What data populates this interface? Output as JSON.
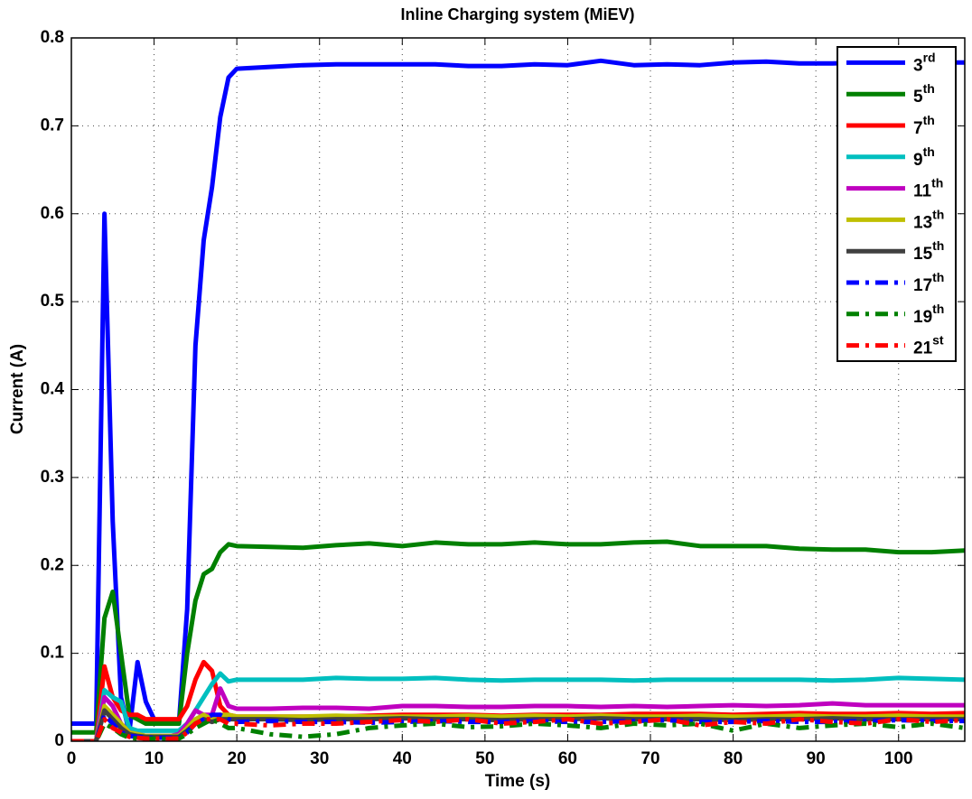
{
  "chart_data": {
    "type": "line",
    "title": "Inline Charging system (MiEV)",
    "x_label": "Time (s)",
    "y_label": "Current (A)",
    "x": [
      0,
      3,
      4,
      5,
      6,
      7,
      8,
      9,
      10,
      11,
      12,
      13,
      14,
      15,
      16,
      17,
      18,
      19,
      20,
      24,
      28,
      32,
      36,
      40,
      44,
      48,
      52,
      56,
      60,
      64,
      68,
      72,
      76,
      80,
      84,
      88,
      92,
      96,
      100,
      104,
      108
    ],
    "xlim": [
      0,
      108
    ],
    "xticks": [
      0,
      10,
      20,
      30,
      40,
      50,
      60,
      70,
      80,
      90,
      100
    ],
    "ylim": [
      0,
      0.8
    ],
    "yticks": [
      0,
      0.1,
      0.2,
      0.3,
      0.4,
      0.5,
      0.6,
      0.7,
      0.8
    ],
    "grid": true,
    "legend": "top-right",
    "series": [
      {
        "name": "3rd",
        "color": "#0000ff",
        "style": "solid",
        "values": [
          0.02,
          0.02,
          0.6,
          0.25,
          0.05,
          0.01,
          0.09,
          0.045,
          0.025,
          0.02,
          0.02,
          0.02,
          0.15,
          0.45,
          0.57,
          0.63,
          0.71,
          0.755,
          0.765,
          0.767,
          0.769,
          0.77,
          0.77,
          0.77,
          0.77,
          0.768,
          0.768,
          0.77,
          0.769,
          0.774,
          0.769,
          0.77,
          0.769,
          0.772,
          0.773,
          0.771,
          0.771,
          0.772,
          0.772,
          0.772,
          0.772
        ]
      },
      {
        "name": "5th",
        "color": "#008000",
        "style": "solid",
        "values": [
          0.01,
          0.01,
          0.14,
          0.17,
          0.1,
          0.03,
          0.025,
          0.02,
          0.02,
          0.02,
          0.02,
          0.02,
          0.1,
          0.16,
          0.19,
          0.196,
          0.215,
          0.224,
          0.222,
          0.221,
          0.22,
          0.223,
          0.225,
          0.222,
          0.226,
          0.224,
          0.224,
          0.226,
          0.224,
          0.224,
          0.226,
          0.227,
          0.222,
          0.222,
          0.222,
          0.219,
          0.218,
          0.218,
          0.215,
          0.215,
          0.217
        ]
      },
      {
        "name": "7th",
        "color": "#ff0000",
        "style": "solid",
        "values": [
          0,
          0,
          0.085,
          0.05,
          0.035,
          0.03,
          0.03,
          0.025,
          0.025,
          0.025,
          0.025,
          0.025,
          0.04,
          0.07,
          0.09,
          0.08,
          0.04,
          0.03,
          0.028,
          0.028,
          0.028,
          0.028,
          0.029,
          0.03,
          0.03,
          0.03,
          0.029,
          0.03,
          0.03,
          0.03,
          0.031,
          0.031,
          0.031,
          0.03,
          0.031,
          0.032,
          0.031,
          0.031,
          0.032,
          0.031,
          0.032
        ]
      },
      {
        "name": "9th",
        "color": "#00bfbf",
        "style": "solid",
        "values": [
          0,
          0,
          0.058,
          0.05,
          0.045,
          0.015,
          0.012,
          0.012,
          0.012,
          0.012,
          0.012,
          0.012,
          0.02,
          0.035,
          0.05,
          0.065,
          0.077,
          0.068,
          0.07,
          0.07,
          0.07,
          0.072,
          0.071,
          0.071,
          0.072,
          0.07,
          0.069,
          0.07,
          0.07,
          0.07,
          0.069,
          0.07,
          0.07,
          0.07,
          0.07,
          0.07,
          0.069,
          0.07,
          0.072,
          0.071,
          0.07
        ]
      },
      {
        "name": "11th",
        "color": "#bf00bf",
        "style": "solid",
        "values": [
          0,
          0,
          0.05,
          0.04,
          0.02,
          0.01,
          0.008,
          0.006,
          0.006,
          0.006,
          0.006,
          0.008,
          0.02,
          0.035,
          0.03,
          0.03,
          0.06,
          0.04,
          0.037,
          0.037,
          0.038,
          0.038,
          0.037,
          0.04,
          0.04,
          0.039,
          0.039,
          0.04,
          0.04,
          0.039,
          0.04,
          0.039,
          0.04,
          0.041,
          0.04,
          0.041,
          0.043,
          0.041,
          0.041,
          0.041,
          0.041
        ]
      },
      {
        "name": "13th",
        "color": "#bfbf00",
        "style": "solid",
        "values": [
          0,
          0,
          0.04,
          0.03,
          0.02,
          0.01,
          0.008,
          0.006,
          0.006,
          0.006,
          0.006,
          0.006,
          0.015,
          0.025,
          0.03,
          0.025,
          0.03,
          0.03,
          0.028,
          0.028,
          0.028,
          0.029,
          0.028,
          0.028,
          0.028,
          0.029,
          0.028,
          0.029,
          0.028,
          0.029,
          0.028,
          0.028,
          0.029,
          0.028,
          0.028,
          0.029,
          0.028,
          0.028,
          0.029,
          0.028,
          0.028
        ]
      },
      {
        "name": "15th",
        "color": "#404040",
        "style": "solid",
        "values": [
          0,
          0,
          0.035,
          0.025,
          0.015,
          0.008,
          0.006,
          0.005,
          0.005,
          0.005,
          0.005,
          0.005,
          0.012,
          0.02,
          0.025,
          0.022,
          0.025,
          0.025,
          0.025,
          0.025,
          0.024,
          0.025,
          0.025,
          0.026,
          0.025,
          0.025,
          0.024,
          0.025,
          0.025,
          0.026,
          0.025,
          0.025,
          0.025,
          0.024,
          0.025,
          0.025,
          0.026,
          0.025,
          0.025,
          0.025,
          0.025
        ]
      },
      {
        "name": "17th",
        "color": "#0000ff",
        "style": "dash-dot",
        "values": [
          0,
          0,
          0.03,
          0.02,
          0.01,
          0.006,
          0.005,
          0.004,
          0.004,
          0.004,
          0.004,
          0.004,
          0.01,
          0.02,
          0.025,
          0.03,
          0.03,
          0.025,
          0.022,
          0.023,
          0.022,
          0.022,
          0.021,
          0.022,
          0.023,
          0.022,
          0.022,
          0.023,
          0.022,
          0.022,
          0.023,
          0.024,
          0.022,
          0.022,
          0.023,
          0.022,
          0.022,
          0.023,
          0.024,
          0.023,
          0.023
        ]
      },
      {
        "name": "19th",
        "color": "#008000",
        "style": "dash-dot",
        "values": [
          0,
          0,
          0.02,
          0.015,
          0.008,
          0.004,
          0.003,
          0.003,
          0.003,
          0.003,
          0.003,
          0.003,
          0.008,
          0.015,
          0.02,
          0.025,
          0.02,
          0.015,
          0.015,
          0.008,
          0.005,
          0.008,
          0.015,
          0.018,
          0.02,
          0.016,
          0.017,
          0.02,
          0.018,
          0.015,
          0.02,
          0.018,
          0.02,
          0.012,
          0.02,
          0.015,
          0.018,
          0.02,
          0.016,
          0.02,
          0.015
        ]
      },
      {
        "name": "21st",
        "color": "#ff0000",
        "style": "dash-dot",
        "values": [
          0,
          0,
          0.025,
          0.015,
          0.01,
          0.005,
          0.004,
          0.003,
          0.003,
          0.003,
          0.003,
          0.003,
          0.01,
          0.02,
          0.025,
          0.025,
          0.025,
          0.02,
          0.02,
          0.018,
          0.02,
          0.02,
          0.022,
          0.024,
          0.022,
          0.025,
          0.02,
          0.022,
          0.025,
          0.02,
          0.022,
          0.025,
          0.018,
          0.022,
          0.02,
          0.025,
          0.022,
          0.02,
          0.025,
          0.022,
          0.024
        ]
      }
    ]
  }
}
